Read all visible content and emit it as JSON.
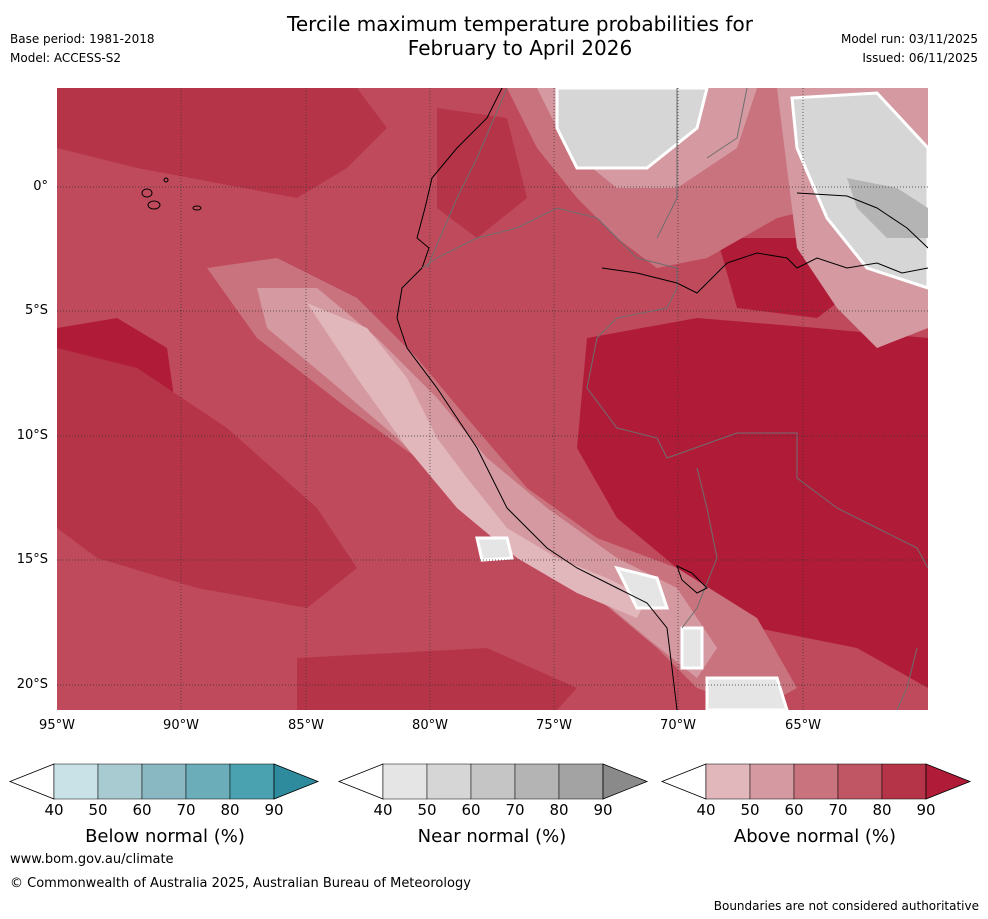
{
  "header": {
    "title_line1": "Tercile maximum temperature probabilities for",
    "title_line2": "February to April 2026",
    "base_period": "Base period: 1981-2018",
    "model": "Model: ACCESS-S2",
    "model_run": "Model run: 03/11/2025",
    "issued": "Issued: 06/11/2025"
  },
  "map": {
    "lat_labels": [
      "0°",
      "5°S",
      "10°S",
      "15°S",
      "20°S"
    ],
    "lon_labels": [
      "95°W",
      "90°W",
      "85°W",
      "80°W",
      "75°W",
      "70°W",
      "65°W"
    ]
  },
  "legends": [
    {
      "label": "Below normal (%)",
      "ticks": [
        "40",
        "50",
        "60",
        "70",
        "80",
        "90"
      ],
      "colors": [
        "#c9e2e7",
        "#a8cad1",
        "#89b8c3",
        "#6badb9",
        "#4aa2b0",
        "#2e8b9e"
      ]
    },
    {
      "label": "Near normal (%)",
      "ticks": [
        "40",
        "50",
        "60",
        "70",
        "80",
        "90"
      ],
      "colors": [
        "#e5e5e5",
        "#d6d6d6",
        "#c5c5c5",
        "#b4b4b4",
        "#a3a3a3",
        "#8a8a8a"
      ]
    },
    {
      "label": "Above normal (%)",
      "ticks": [
        "40",
        "50",
        "60",
        "70",
        "80",
        "90"
      ],
      "colors": [
        "#e2b7bc",
        "#d59aa1",
        "#c9737e",
        "#c05563",
        "#b63448",
        "#b01c38"
      ]
    }
  ],
  "footer": {
    "website": "www.bom.gov.au/climate",
    "copyright": "© Commonwealth of Australia 2025, Australian Bureau of Meteorology",
    "disclaimer": "Boundaries are not considered authoritative"
  },
  "colors": {
    "above_80": "#b63448",
    "above_90": "#b01c38",
    "above_70": "#c05563",
    "above_60": "#c9737e",
    "above_50": "#d59aa1",
    "above_40": "#e2b7bc",
    "near_40": "#e5e5e5",
    "near_50": "#d6d6d6",
    "near_60": "#c5c5c5",
    "near_70": "#b4b4b4"
  }
}
